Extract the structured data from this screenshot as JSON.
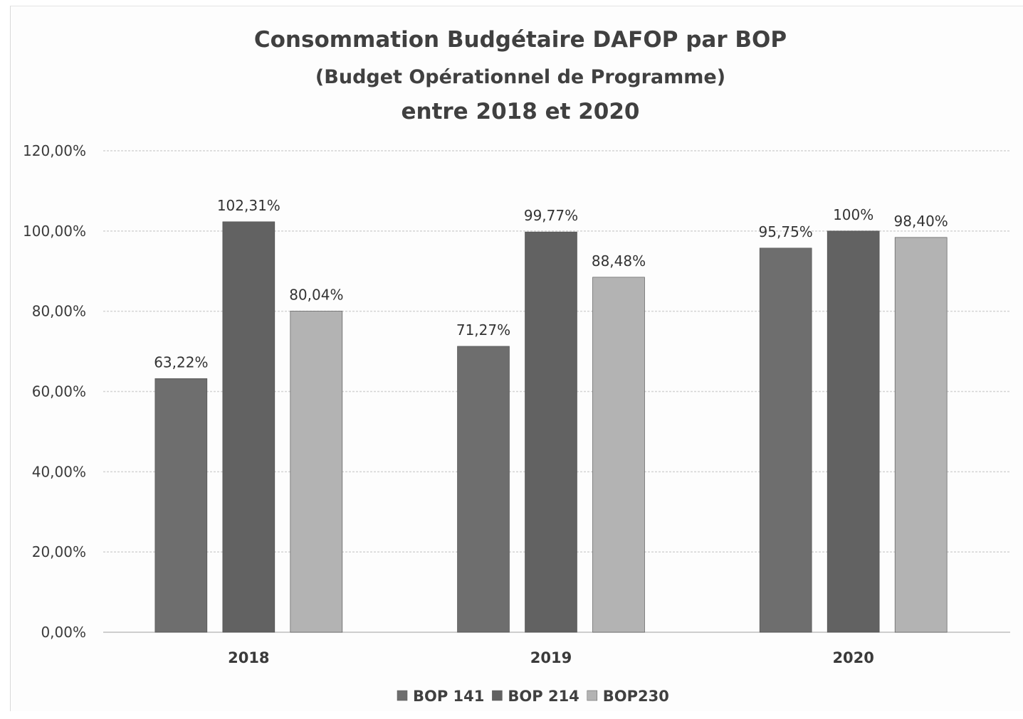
{
  "chart_data": {
    "type": "bar",
    "title_lines": [
      "Consommation Budgétaire DAFOP par BOP",
      "(Budget Opérationnel de Programme)",
      "entre 2018 et 2020"
    ],
    "categories": [
      "2018",
      "2019",
      "2020"
    ],
    "series": [
      {
        "name": "BOP 141",
        "color": "#6e6e6e",
        "values": [
          63.22,
          71.27,
          95.75
        ],
        "data_labels": [
          "63,22%",
          "71,27%",
          "95,75%"
        ]
      },
      {
        "name": "BOP 214",
        "color": "#626262",
        "values": [
          102.31,
          99.77,
          100
        ],
        "data_labels": [
          "102,31%",
          "99,77%",
          "100%"
        ]
      },
      {
        "name": "BOP230",
        "color": "#b3b3b3",
        "values": [
          80.04,
          88.48,
          98.4
        ],
        "data_labels": [
          "80,04%",
          "88,48%",
          "98,40%"
        ]
      }
    ],
    "y_ticks": [
      0,
      20,
      40,
      60,
      80,
      100,
      120
    ],
    "y_tick_labels": [
      "0,00%",
      "20,00%",
      "40,00%",
      "60,00%",
      "80,00%",
      "100,00%",
      "120,00%"
    ],
    "ylim": [
      0,
      120
    ],
    "grid": true,
    "legend_position": "bottom-center",
    "xlabel": "",
    "ylabel": ""
  }
}
